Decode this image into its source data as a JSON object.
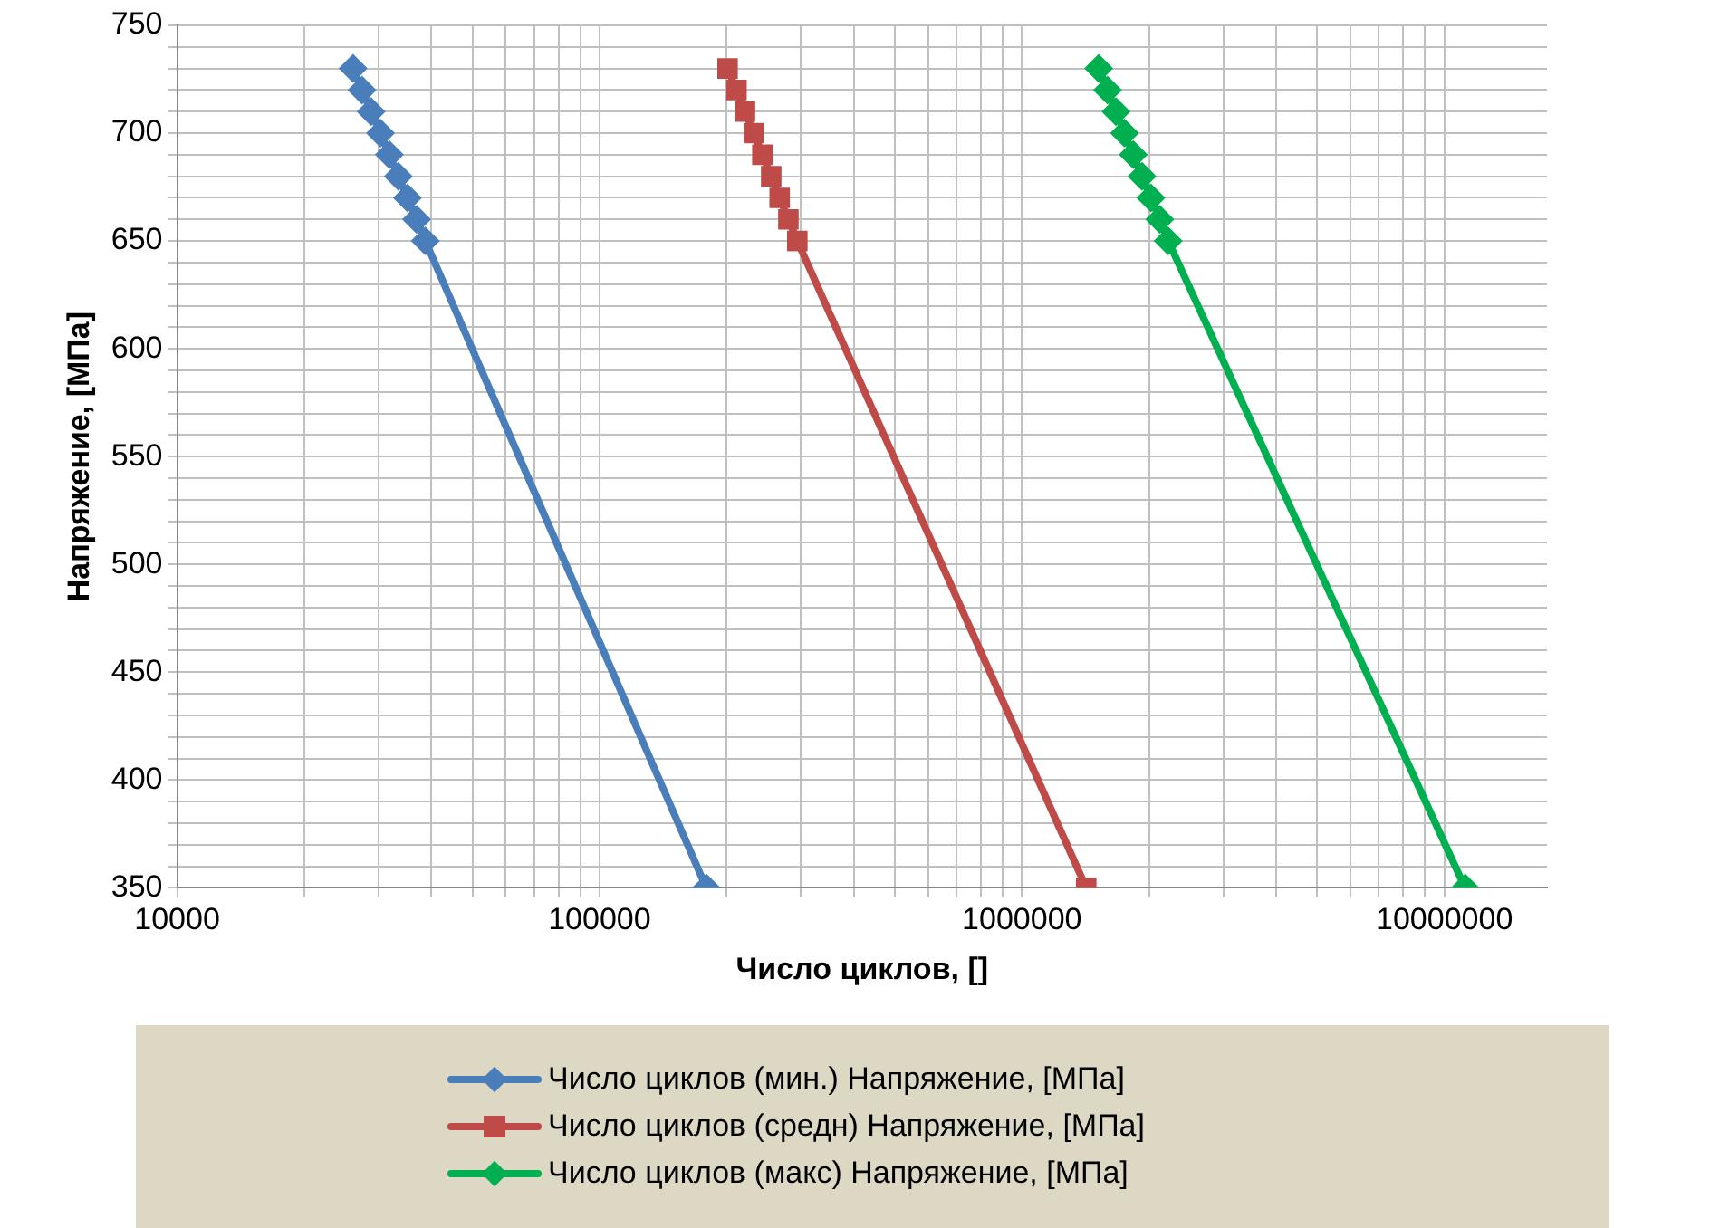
{
  "chart_data": {
    "type": "line",
    "xlabel": "Число циклов, []",
    "ylabel": "Напряжение, [МПа]",
    "log": "x",
    "grid": true,
    "legend": "bottom",
    "line_style": "solid",
    "xlim": [
      10000,
      17500000
    ],
    "xticks": [
      10000,
      {
        "value": 20000,
        "label": null
      },
      {
        "value": 30000,
        "label": null
      },
      {
        "value": 40000,
        "label": null
      },
      {
        "value": 50000,
        "label": null
      },
      {
        "value": 60000,
        "label": null
      },
      {
        "value": 70000,
        "label": null
      },
      {
        "value": 80000,
        "label": null
      },
      {
        "value": 90000,
        "label": null
      },
      100000,
      {
        "value": 200000,
        "label": null
      },
      {
        "value": 300000,
        "label": null
      },
      {
        "value": 400000,
        "label": null
      },
      {
        "value": 500000,
        "label": null
      },
      {
        "value": 600000,
        "label": null
      },
      {
        "value": 700000,
        "label": null
      },
      {
        "value": 800000,
        "label": null
      },
      {
        "value": 900000,
        "label": null
      },
      1000000,
      {
        "value": 2000000,
        "label": null
      },
      {
        "value": 3000000,
        "label": null
      },
      {
        "value": 4000000,
        "label": null
      },
      {
        "value": 5000000,
        "label": null
      },
      {
        "value": 6000000,
        "label": null
      },
      {
        "value": 7000000,
        "label": null
      },
      {
        "value": 8000000,
        "label": null
      },
      {
        "value": 9000000,
        "label": null
      },
      10000000
    ],
    "ylim": [
      350,
      750
    ],
    "yticks": [
      350,
      {
        "value": 360,
        "label": null
      },
      {
        "value": 370,
        "label": null
      },
      {
        "value": 380,
        "label": null
      },
      {
        "value": 390,
        "label": null
      },
      400,
      {
        "value": 410,
        "label": null
      },
      {
        "value": 420,
        "label": null
      },
      {
        "value": 430,
        "label": null
      },
      {
        "value": 440,
        "label": null
      },
      450,
      {
        "value": 460,
        "label": null
      },
      {
        "value": 470,
        "label": null
      },
      {
        "value": 480,
        "label": null
      },
      {
        "value": 490,
        "label": null
      },
      500,
      {
        "value": 510,
        "label": null
      },
      {
        "value": 520,
        "label": null
      },
      {
        "value": 530,
        "label": null
      },
      {
        "value": 540,
        "label": null
      },
      550,
      {
        "value": 560,
        "label": null
      },
      {
        "value": 570,
        "label": null
      },
      {
        "value": 580,
        "label": null
      },
      {
        "value": 590,
        "label": null
      },
      600,
      {
        "value": 610,
        "label": null
      },
      {
        "value": 620,
        "label": null
      },
      {
        "value": 630,
        "label": null
      },
      {
        "value": 640,
        "label": null
      },
      650,
      {
        "value": 660,
        "label": null
      },
      {
        "value": 670,
        "label": null
      },
      {
        "value": 680,
        "label": null
      },
      {
        "value": 690,
        "label": null
      },
      700,
      {
        "value": 710,
        "label": null
      },
      {
        "value": 720,
        "label": null
      },
      {
        "value": 730,
        "label": null
      },
      {
        "value": 740,
        "label": null
      },
      750
    ],
    "series": [
      {
        "name": "Число циклов (мин.) Напряжение,  [МПа]",
        "color": "#4a7ebb",
        "marker": "diamond",
        "x": [
          26100,
          27400,
          28800,
          30300,
          31800,
          33400,
          35100,
          36900,
          38700,
          179000
        ],
        "values": [
          730,
          720,
          710,
          700,
          690,
          680,
          670,
          660,
          650,
          350
        ]
      },
      {
        "name": "Число циклов (средн) Напряжение,  [МПа]",
        "color": "#be4b48",
        "marker": "square",
        "x": [
          201000,
          211000,
          221000,
          232000,
          243000,
          255000,
          267000,
          280000,
          294000,
          1420000
        ],
        "values": [
          730,
          720,
          710,
          700,
          690,
          680,
          670,
          660,
          650,
          350
        ]
      },
      {
        "name": "Число циклов (макс) Напряжение,  [МПа]",
        "color": "#00b050",
        "marker": "diamond",
        "x": [
          1520000,
          1595000,
          1670000,
          1750000,
          1835000,
          1925000,
          2020000,
          2120000,
          2220000,
          11200000
        ],
        "values": [
          730,
          720,
          710,
          700,
          690,
          680,
          670,
          660,
          650,
          350
        ]
      }
    ]
  }
}
